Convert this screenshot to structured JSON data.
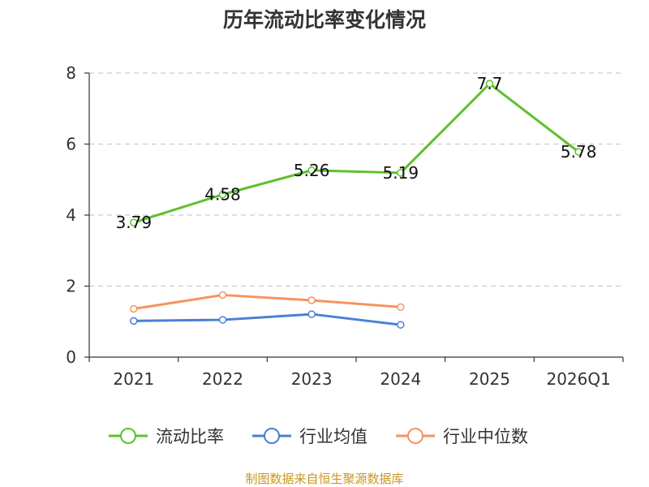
{
  "chart_data": {
    "type": "line",
    "title": "历年流动比率变化情况",
    "categories": [
      "2021",
      "2022",
      "2023",
      "2024",
      "2025",
      "2026Q1"
    ],
    "yticks": [
      "0",
      "2",
      "4",
      "6",
      "8"
    ],
    "ylim": [
      0,
      8
    ],
    "grid": true,
    "legend_position": "bottom",
    "series": [
      {
        "name": "流动比率",
        "color": "#5ec12c",
        "values": [
          3.79,
          4.58,
          5.26,
          5.19,
          7.7,
          5.78
        ],
        "labels": [
          "3.79",
          "4.58",
          "5.26",
          "5.19",
          "7.7",
          "5.78"
        ]
      },
      {
        "name": "行业均值",
        "color": "#4a7fd6",
        "values": [
          1.02,
          1.05,
          1.21,
          0.91,
          null,
          null
        ]
      },
      {
        "name": "行业中位数",
        "color": "#f7925e",
        "values": [
          1.36,
          1.75,
          1.6,
          1.41,
          null,
          null
        ]
      }
    ]
  },
  "source": {
    "text": "制图数据来自恒生聚源数据库",
    "color": "#c8961e"
  }
}
